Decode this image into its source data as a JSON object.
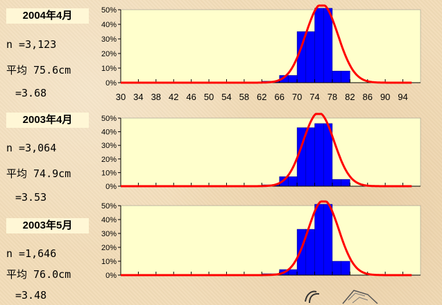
{
  "panels": [
    {
      "label": "2004年4月",
      "n": "n =3,123",
      "mean": "平均 75.6cm",
      "sd": "=3.68"
    },
    {
      "label": "2003年4月",
      "n": "n =3,064",
      "mean": "平均 74.9cm",
      "sd": "=3.53"
    },
    {
      "label": "2003年5月",
      "n": "n =1,646",
      "mean": "平均 76.0cm",
      "sd": "=3.48"
    }
  ],
  "colors": {
    "bar": "#0000ff",
    "curve": "#ff0000",
    "plot_bg": "#ffffcc",
    "axis": "#000000"
  },
  "chart_data": [
    {
      "type": "bar",
      "x": [
        30,
        32,
        34,
        36,
        38,
        40,
        42,
        44,
        46,
        48,
        50,
        52,
        54,
        56,
        58,
        60,
        62,
        64,
        66,
        68,
        70,
        72,
        74,
        76,
        78,
        80,
        82,
        84,
        86,
        88,
        90,
        92,
        94,
        96
      ],
      "values": [
        0,
        0,
        0,
        0,
        0,
        0,
        0,
        0,
        0,
        0,
        0,
        0,
        0,
        0,
        0,
        0.3,
        1,
        1,
        5,
        5,
        35,
        35,
        51,
        51,
        8,
        8,
        0,
        0,
        0,
        0,
        0,
        0,
        0,
        0
      ],
      "ylim": [
        0,
        50
      ],
      "yticks": [
        "0%",
        "10%",
        "20%",
        "30%",
        "40%",
        "50%"
      ],
      "xticks": [
        "30",
        "34",
        "38",
        "42",
        "46",
        "50",
        "54",
        "58",
        "62",
        "66",
        "70",
        "74",
        "78",
        "82",
        "86",
        "90",
        "94"
      ],
      "curve": {
        "mean": 75.6,
        "sd": 3.68
      }
    },
    {
      "type": "bar",
      "x": [
        30,
        32,
        34,
        36,
        38,
        40,
        42,
        44,
        46,
        48,
        50,
        52,
        54,
        56,
        58,
        60,
        62,
        64,
        66,
        68,
        70,
        72,
        74,
        76,
        78,
        80,
        82,
        84,
        86,
        88,
        90,
        92,
        94,
        96
      ],
      "values": [
        0,
        0,
        0,
        0,
        0,
        0,
        0,
        0,
        0,
        0,
        0,
        0,
        0,
        0,
        0,
        0,
        1,
        1,
        7,
        7,
        43,
        43,
        46,
        46,
        5,
        5,
        0,
        0,
        0,
        0,
        0,
        0,
        0,
        0
      ],
      "ylim": [
        0,
        50
      ],
      "yticks": [
        "0%",
        "10%",
        "20%",
        "30%",
        "40%",
        "50%"
      ],
      "curve": {
        "mean": 74.9,
        "sd": 3.53
      }
    },
    {
      "type": "bar",
      "x": [
        30,
        32,
        34,
        36,
        38,
        40,
        42,
        44,
        46,
        48,
        50,
        52,
        54,
        56,
        58,
        60,
        62,
        64,
        66,
        68,
        70,
        72,
        74,
        76,
        78,
        80,
        82,
        84,
        86,
        88,
        90,
        92,
        94,
        96
      ],
      "values": [
        0,
        0,
        0,
        0,
        0,
        0,
        0,
        0,
        0,
        0,
        0,
        0,
        0,
        0,
        0,
        0,
        1,
        1,
        4,
        4,
        33,
        33,
        51,
        51,
        10,
        10,
        0,
        0,
        0,
        0,
        0,
        0,
        0,
        0
      ],
      "ylim": [
        0,
        50
      ],
      "yticks": [
        "0%",
        "10%",
        "20%",
        "30%",
        "40%",
        "50%"
      ],
      "curve": {
        "mean": 76.0,
        "sd": 3.48
      }
    }
  ]
}
